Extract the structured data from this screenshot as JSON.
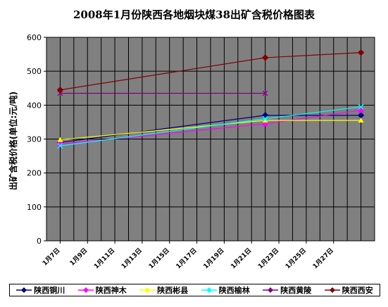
{
  "chart_data": {
    "type": "line",
    "title": "2008年1月份陕西各地烟块煤38出矿含税价格图表",
    "ylabel": "出矿含税价格(单位:元/吨)",
    "xlabel": "",
    "ylim": [
      0,
      600
    ],
    "yticks": [
      0,
      100,
      200,
      300,
      400,
      500,
      600
    ],
    "x_tick_labels": [
      "1月7日",
      "1月9日",
      "1月11日",
      "1月13日",
      "1月15日",
      "1月17日",
      "1月19日",
      "1月21日",
      "1月23日",
      "1月25日",
      "1月27日"
    ],
    "grid": true,
    "plot_background": "#808080",
    "legend_position": "bottom",
    "series": [
      {
        "name": "陕西铜川",
        "color": "#000080",
        "marker": "diamond",
        "points": [
          {
            "day": 7,
            "value": 290
          },
          {
            "day": 22,
            "value": 370
          },
          {
            "day": 29,
            "value": 370
          }
        ]
      },
      {
        "name": "陕西神木",
        "color": "#ff00ff",
        "marker": "square",
        "points": [
          {
            "day": 7,
            "value": 285
          },
          {
            "day": 22,
            "value": 345
          },
          {
            "day": 29,
            "value": 385
          }
        ]
      },
      {
        "name": "陕西彬县",
        "color": "#ffff00",
        "marker": "triangle",
        "points": [
          {
            "day": 7,
            "value": 298
          },
          {
            "day": 22,
            "value": 355
          },
          {
            "day": 29,
            "value": 355
          }
        ]
      },
      {
        "name": "陕西榆林",
        "color": "#00ffff",
        "marker": "x",
        "points": [
          {
            "day": 7,
            "value": 280
          },
          {
            "day": 22,
            "value": 360
          },
          {
            "day": 29,
            "value": 395
          }
        ]
      },
      {
        "name": "陕西黄陵",
        "color": "#800080",
        "marker": "star",
        "points": [
          {
            "day": 7,
            "value": 435
          },
          {
            "day": 22,
            "value": 435
          }
        ]
      },
      {
        "name": "陕西西安",
        "color": "#800000",
        "marker": "diamond",
        "points": [
          {
            "day": 7,
            "value": 445
          },
          {
            "day": 22,
            "value": 540
          },
          {
            "day": 29,
            "value": 555
          }
        ]
      }
    ]
  }
}
